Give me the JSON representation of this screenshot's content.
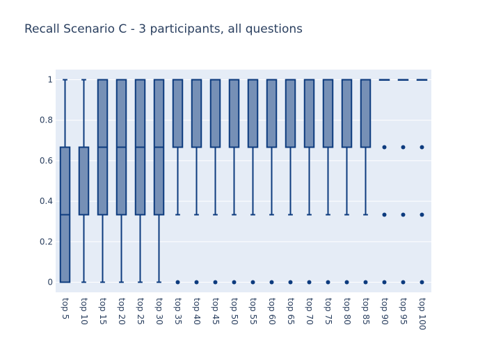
{
  "chart_data": {
    "type": "box",
    "title": "Recall Scenario C - 3 participants, all questions",
    "xlabel": "",
    "ylabel": "",
    "ylim": [
      -0.05,
      1.05
    ],
    "yticks": [
      0,
      0.2,
      0.4,
      0.6,
      0.8,
      1
    ],
    "ytick_labels": [
      "0",
      "0.2",
      "0.4",
      "0.6",
      "0.8",
      "1"
    ],
    "grid": true,
    "colors": {
      "box_line": "#0d3b7e",
      "box_fill": "#7690b6",
      "plot_bg": "#e5ecf6",
      "grid": "#ffffff",
      "text": "#2a3f5f"
    },
    "categories": [
      "top 5",
      "top 10",
      "top 15",
      "top 20",
      "top 25",
      "top 30",
      "top 35",
      "top 40",
      "top 45",
      "top 50",
      "top 55",
      "top 60",
      "top 65",
      "top 70",
      "top 75",
      "top 80",
      "top 85",
      "top 90",
      "top 95",
      "top 100"
    ],
    "boxes": [
      {
        "q1": 0,
        "median": 0.3333,
        "q3": 0.6667,
        "lower": 0,
        "upper": 1,
        "outliers": []
      },
      {
        "q1": 0.3333,
        "median": 0.3333,
        "q3": 0.6667,
        "lower": 0,
        "upper": 1,
        "outliers": []
      },
      {
        "q1": 0.3333,
        "median": 0.6667,
        "q3": 1,
        "lower": 0,
        "upper": 1,
        "outliers": []
      },
      {
        "q1": 0.3333,
        "median": 0.6667,
        "q3": 1,
        "lower": 0,
        "upper": 1,
        "outliers": []
      },
      {
        "q1": 0.3333,
        "median": 0.6667,
        "q3": 1,
        "lower": 0,
        "upper": 1,
        "outliers": []
      },
      {
        "q1": 0.3333,
        "median": 0.6667,
        "q3": 1,
        "lower": 0,
        "upper": 1,
        "outliers": []
      },
      {
        "q1": 0.6667,
        "median": 1,
        "q3": 1,
        "lower": 0.3333,
        "upper": 1,
        "outliers": [
          0
        ]
      },
      {
        "q1": 0.6667,
        "median": 1,
        "q3": 1,
        "lower": 0.3333,
        "upper": 1,
        "outliers": [
          0
        ]
      },
      {
        "q1": 0.6667,
        "median": 1,
        "q3": 1,
        "lower": 0.3333,
        "upper": 1,
        "outliers": [
          0
        ]
      },
      {
        "q1": 0.6667,
        "median": 1,
        "q3": 1,
        "lower": 0.3333,
        "upper": 1,
        "outliers": [
          0
        ]
      },
      {
        "q1": 0.6667,
        "median": 1,
        "q3": 1,
        "lower": 0.3333,
        "upper": 1,
        "outliers": [
          0
        ]
      },
      {
        "q1": 0.6667,
        "median": 1,
        "q3": 1,
        "lower": 0.3333,
        "upper": 1,
        "outliers": [
          0
        ]
      },
      {
        "q1": 0.6667,
        "median": 1,
        "q3": 1,
        "lower": 0.3333,
        "upper": 1,
        "outliers": [
          0
        ]
      },
      {
        "q1": 0.6667,
        "median": 1,
        "q3": 1,
        "lower": 0.3333,
        "upper": 1,
        "outliers": [
          0
        ]
      },
      {
        "q1": 0.6667,
        "median": 1,
        "q3": 1,
        "lower": 0.3333,
        "upper": 1,
        "outliers": [
          0
        ]
      },
      {
        "q1": 0.6667,
        "median": 1,
        "q3": 1,
        "lower": 0.3333,
        "upper": 1,
        "outliers": [
          0
        ]
      },
      {
        "q1": 0.6667,
        "median": 1,
        "q3": 1,
        "lower": 0.3333,
        "upper": 1,
        "outliers": [
          0
        ]
      },
      {
        "q1": 1,
        "median": 1,
        "q3": 1,
        "lower": 1,
        "upper": 1,
        "outliers": [
          0,
          0.3333,
          0.6667
        ]
      },
      {
        "q1": 1,
        "median": 1,
        "q3": 1,
        "lower": 1,
        "upper": 1,
        "outliers": [
          0,
          0.3333,
          0.6667
        ]
      },
      {
        "q1": 1,
        "median": 1,
        "q3": 1,
        "lower": 1,
        "upper": 1,
        "outliers": [
          0,
          0.3333,
          0.6667
        ]
      }
    ]
  }
}
